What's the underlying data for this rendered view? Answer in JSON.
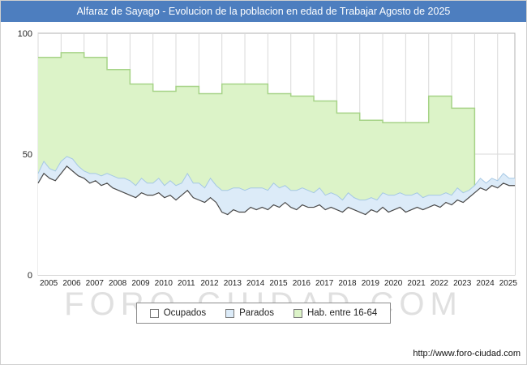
{
  "watermark": "FORO-CIUDAD.COM",
  "footer": {
    "url": "http://www.foro-ciudad.com"
  },
  "colors": {
    "titlebar_bg": "#4d7ebf",
    "titlebar_text": "#ffffff",
    "grid": "#d9d9d9",
    "plot_border": "#b0b0b0",
    "ocupados_fill": "#ffffff",
    "ocupados_stroke": "#4a4a4a",
    "parados_fill": "#dcebf8",
    "parados_stroke": "#a5c8e4",
    "hab_fill": "#dcf3c8",
    "hab_stroke": "#a6d387"
  },
  "chart_data": {
    "type": "area",
    "title": "Alfaraz de Sayago - Evolucion de la poblacion en edad de Trabajar Agosto de 2025",
    "ylim": [
      0,
      100
    ],
    "yticks": [
      0,
      50,
      100
    ],
    "x_start": 2005,
    "x_end": 2025.75,
    "quarterly_x_step": 0.25,
    "x_tick_labels": [
      "2005",
      "2006",
      "2007",
      "2008",
      "2009",
      "2010",
      "2011",
      "2012",
      "2013",
      "2014",
      "2015",
      "2016",
      "2017",
      "2018",
      "2019",
      "2020",
      "2021",
      "2022",
      "2023",
      "2024",
      "2025"
    ],
    "grid": true,
    "legend_position": "bottom",
    "series": [
      {
        "name": "Ocupados",
        "cadence": "quarterly",
        "values": [
          38,
          42,
          40,
          39,
          42,
          45,
          43,
          41,
          40,
          38,
          39,
          37,
          38,
          36,
          35,
          34,
          33,
          32,
          34,
          33,
          33,
          34,
          32,
          33,
          31,
          33,
          35,
          32,
          31,
          30,
          32,
          30,
          26,
          25,
          27,
          26,
          26,
          28,
          27,
          28,
          27,
          29,
          28,
          30,
          28,
          27,
          29,
          28,
          28,
          29,
          27,
          28,
          27,
          26,
          28,
          27,
          26,
          25,
          27,
          26,
          28,
          26,
          27,
          28,
          26,
          27,
          28,
          27,
          28,
          29,
          28,
          30,
          29,
          31,
          30,
          32,
          34,
          36,
          35,
          37,
          36,
          38,
          37
        ]
      },
      {
        "name": "Parados",
        "cadence": "quarterly",
        "stacked_on": "Ocupados",
        "values": [
          4,
          5,
          4,
          4,
          5,
          4,
          5,
          4,
          3,
          4,
          3,
          4,
          4,
          5,
          5,
          6,
          6,
          5,
          6,
          5,
          5,
          6,
          5,
          6,
          6,
          5,
          7,
          6,
          7,
          6,
          8,
          7,
          9,
          10,
          9,
          10,
          9,
          8,
          9,
          8,
          8,
          9,
          8,
          7,
          7,
          8,
          7,
          7,
          6,
          7,
          6,
          6,
          6,
          5,
          6,
          5,
          5,
          6,
          5,
          5,
          6,
          7,
          6,
          6,
          7,
          6,
          6,
          5,
          5,
          4,
          5,
          4,
          4,
          5,
          4,
          3,
          3,
          4,
          3,
          3,
          3,
          4,
          3
        ]
      },
      {
        "name": "Hab. entre 16-64",
        "cadence": "yearly",
        "years": [
          2005,
          2006,
          2007,
          2008,
          2009,
          2010,
          2011,
          2012,
          2013,
          2014,
          2015,
          2016,
          2017,
          2018,
          2019,
          2020,
          2021,
          2022,
          2023
        ],
        "values": [
          90,
          92,
          90,
          85,
          79,
          76,
          78,
          75,
          79,
          79,
          75,
          74,
          72,
          67,
          64,
          63,
          63,
          74,
          69
        ]
      }
    ]
  }
}
